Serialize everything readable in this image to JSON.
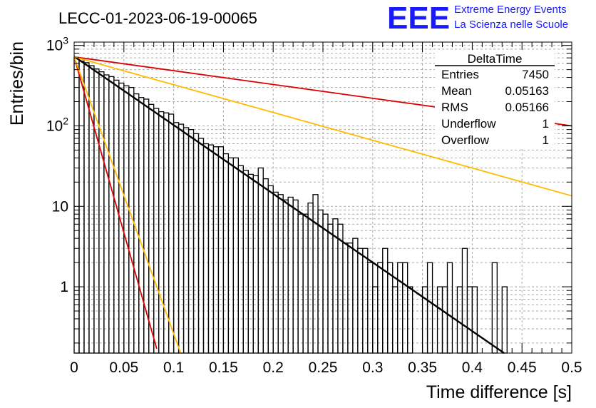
{
  "run_title": "LECC-01-2023-06-19-00065",
  "logo": {
    "mark": "EEE",
    "line1": "Extreme Energy Events",
    "line2": "La Scienza nelle Scuole",
    "color": "#1a1aff"
  },
  "stats_box": {
    "name": "DeltaTime",
    "rows": [
      {
        "label": "Entries",
        "value": "7450"
      },
      {
        "label": "Mean",
        "value": "0.05163"
      },
      {
        "label": "RMS",
        "value": "0.05166"
      },
      {
        "label": "Underflow",
        "value": "1"
      },
      {
        "label": "Overflow",
        "value": "1"
      }
    ]
  },
  "chart_data": {
    "type": "histogram",
    "xlabel": "Time difference [s]",
    "ylabel": "Entries/bin",
    "xlim": [
      0,
      0.5
    ],
    "ylim": [
      0.15,
      1100
    ],
    "yscale": "log",
    "grid": true,
    "x_ticks": [
      "0",
      "0.05",
      "0.1",
      "0.15",
      "0.2",
      "0.25",
      "0.3",
      "0.35",
      "0.4",
      "0.45",
      "0.5"
    ],
    "y_ticks": [
      {
        "value": 1,
        "label": "1"
      },
      {
        "value": 10,
        "label": "10"
      },
      {
        "value": 100,
        "label": "10^2"
      },
      {
        "value": 1000,
        "label": "10^3"
      }
    ],
    "bin_width": 0.005,
    "bin_counts": [
      700,
      640,
      610,
      560,
      510,
      470,
      430,
      410,
      370,
      340,
      315,
      300,
      250,
      225,
      215,
      185,
      165,
      150,
      145,
      140,
      110,
      105,
      95,
      90,
      80,
      70,
      60,
      58,
      55,
      55,
      45,
      40,
      40,
      32,
      28,
      25,
      24,
      30,
      22,
      18,
      15,
      14,
      12,
      13,
      12,
      8,
      8,
      11,
      14,
      9,
      8,
      6,
      7,
      6,
      3.5,
      3.5,
      4,
      3,
      3,
      2,
      1,
      2,
      3,
      2,
      1,
      2,
      2,
      1,
      0,
      0,
      1,
      2,
      0,
      1,
      1,
      2,
      0,
      1,
      3,
      1,
      1,
      0,
      0,
      0,
      2,
      0,
      1,
      0,
      0,
      0,
      0,
      0,
      0,
      0,
      0,
      0,
      0,
      0,
      0,
      0
    ],
    "fits": [
      {
        "color": "#000000",
        "x": [
          0,
          0.432
        ],
        "y": [
          730,
          0.15
        ]
      },
      {
        "color": "#dd0000",
        "x": [
          0,
          0.5
        ],
        "y": [
          720,
          100
        ]
      },
      {
        "color": "#ffbb00",
        "x": [
          0,
          0.5
        ],
        "y": [
          720,
          13.5
        ]
      },
      {
        "color": "#dd0000",
        "x": [
          0,
          0.083
        ],
        "y": [
          720,
          0.17
        ]
      },
      {
        "color": "#ffbb00",
        "x": [
          0,
          0.107
        ],
        "y": [
          720,
          0.15
        ]
      }
    ]
  }
}
